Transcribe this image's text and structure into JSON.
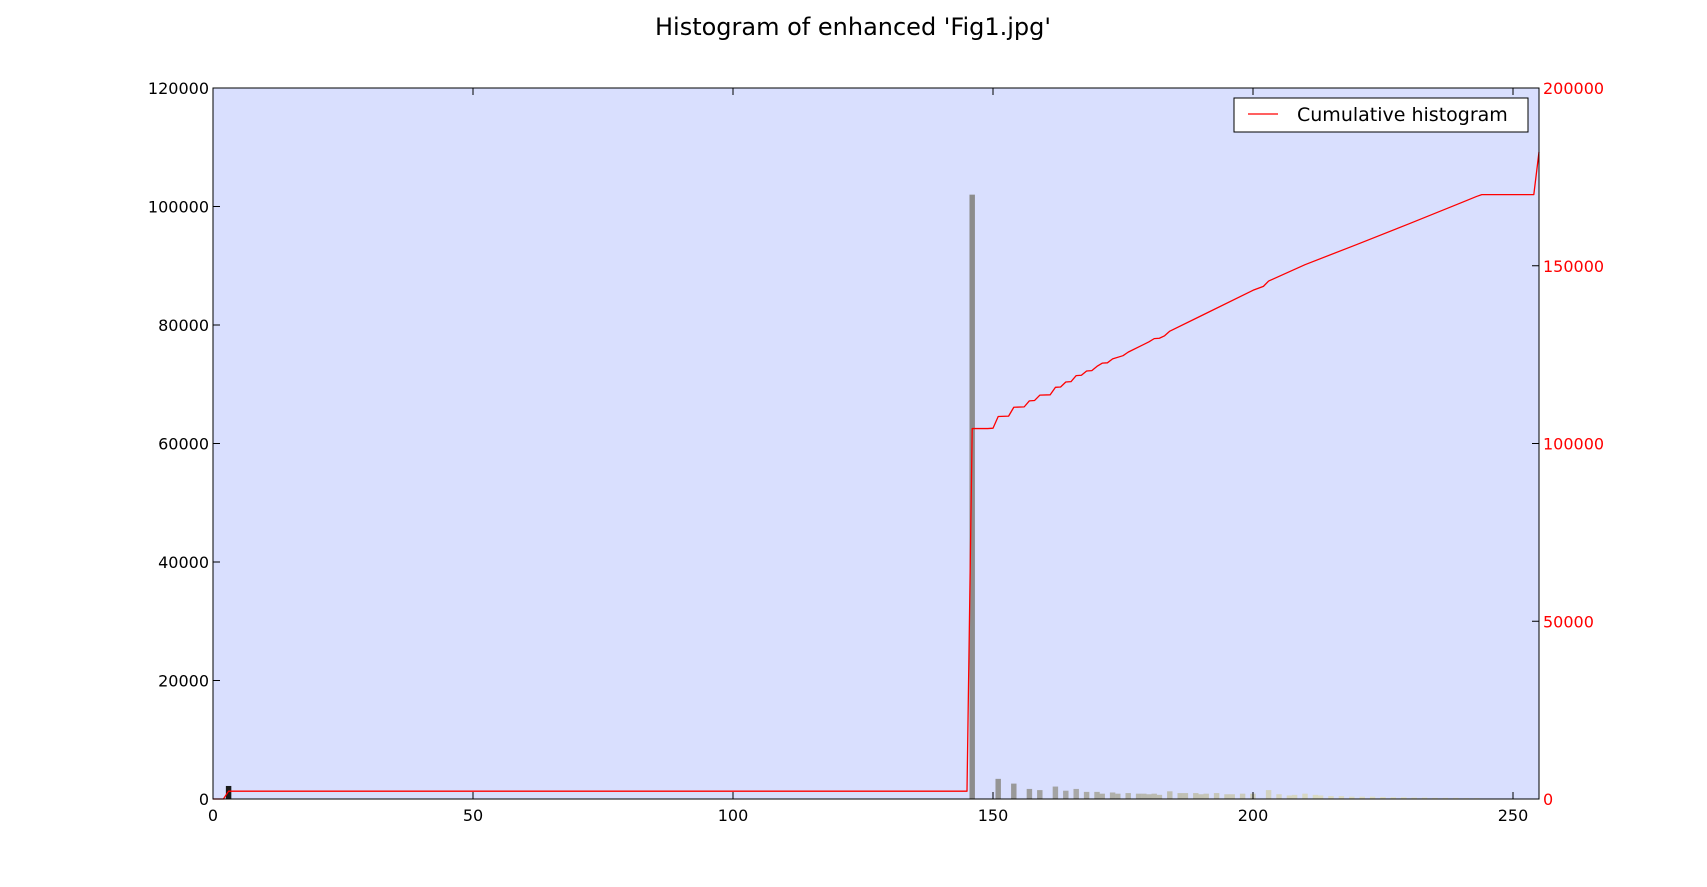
{
  "chart_data": {
    "type": "bar",
    "title": "Histogram of enhanced 'Fig1.jpg'",
    "xlabel": "",
    "ylabel": "",
    "xlim": [
      0,
      255
    ],
    "ylim_left": [
      0,
      120000
    ],
    "ylim_right": [
      0,
      200000
    ],
    "x_ticks": [
      "0",
      "50",
      "100",
      "150",
      "200",
      "250"
    ],
    "y_left_ticks": [
      "0",
      "20000",
      "40000",
      "60000",
      "80000",
      "100000",
      "120000"
    ],
    "y_right_ticks": [
      "0",
      "50000",
      "100000",
      "150000",
      "200000"
    ],
    "grid": false,
    "legend": {
      "position": "top-right",
      "entries": [
        "Cumulative histogram"
      ]
    },
    "colors": {
      "plot_background": "#d9dffe",
      "cumulative_line": "#ff0000",
      "right_axis_labels": "#ff0000"
    },
    "series": [
      {
        "type": "bar",
        "axis": "left",
        "points": [
          {
            "x": 3,
            "y": 2200,
            "color": "#1a1a1a"
          },
          {
            "x": 146,
            "y": 102000,
            "color": "#8c8c8c"
          },
          {
            "x": 151,
            "y": 3400,
            "color": "#959595"
          },
          {
            "x": 154,
            "y": 2600,
            "color": "#999999"
          },
          {
            "x": 157,
            "y": 1700,
            "color": "#9c9c9c"
          },
          {
            "x": 159,
            "y": 1500,
            "color": "#a0a0a0"
          },
          {
            "x": 162,
            "y": 2100,
            "color": "#a3a3a3"
          },
          {
            "x": 164,
            "y": 1400,
            "color": "#a6a6a6"
          },
          {
            "x": 166,
            "y": 1700,
            "color": "#a8a8a8"
          },
          {
            "x": 168,
            "y": 1200,
            "color": "#abaaa6"
          },
          {
            "x": 170,
            "y": 1200,
            "color": "#adada8"
          },
          {
            "x": 171,
            "y": 900,
            "color": "#afafa9"
          },
          {
            "x": 173,
            "y": 1100,
            "color": "#b0b0ab"
          },
          {
            "x": 174,
            "y": 900,
            "color": "#b2b2ac"
          },
          {
            "x": 176,
            "y": 1000,
            "color": "#b4b4ad"
          },
          {
            "x": 178,
            "y": 900,
            "color": "#b6b6ae"
          },
          {
            "x": 179,
            "y": 900,
            "color": "#b8b8af"
          },
          {
            "x": 180,
            "y": 800,
            "color": "#b9b9b0"
          },
          {
            "x": 181,
            "y": 900,
            "color": "#bbbbb1"
          },
          {
            "x": 182,
            "y": 700,
            "color": "#bdbdb2"
          },
          {
            "x": 184,
            "y": 1300,
            "color": "#bebeb3"
          },
          {
            "x": 186,
            "y": 1000,
            "color": "#c0c0b4"
          },
          {
            "x": 187,
            "y": 1000,
            "color": "#c1c1b5"
          },
          {
            "x": 189,
            "y": 1000,
            "color": "#c3c3b6"
          },
          {
            "x": 190,
            "y": 800,
            "color": "#c4c4b7"
          },
          {
            "x": 191,
            "y": 900,
            "color": "#c6c6b8"
          },
          {
            "x": 193,
            "y": 1000,
            "color": "#c7c7b9"
          },
          {
            "x": 195,
            "y": 800,
            "color": "#c9c9ba"
          },
          {
            "x": 196,
            "y": 800,
            "color": "#cacabb"
          },
          {
            "x": 198,
            "y": 900,
            "color": "#cbcbbc"
          },
          {
            "x": 200,
            "y": 900,
            "color": "#cdcdbd"
          },
          {
            "x": 203,
            "y": 1500,
            "color": "#d2d2c0"
          },
          {
            "x": 205,
            "y": 800,
            "color": "#d4d4c1"
          },
          {
            "x": 207,
            "y": 600,
            "color": "#d6d6c2"
          },
          {
            "x": 208,
            "y": 700,
            "color": "#d7d7c3"
          },
          {
            "x": 210,
            "y": 900,
            "color": "#d8d8c3"
          },
          {
            "x": 212,
            "y": 700,
            "color": "#dadac4"
          },
          {
            "x": 213,
            "y": 600,
            "color": "#dbdbc5"
          },
          {
            "x": 215,
            "y": 500,
            "color": "#dcdcc5"
          },
          {
            "x": 217,
            "y": 500,
            "color": "#dddcc6"
          },
          {
            "x": 219,
            "y": 400,
            "color": "#dedec6"
          },
          {
            "x": 221,
            "y": 400,
            "color": "#dfdfc7"
          },
          {
            "x": 223,
            "y": 400,
            "color": "#e0e0c7"
          },
          {
            "x": 225,
            "y": 350,
            "color": "#e1e1c8"
          },
          {
            "x": 227,
            "y": 300,
            "color": "#e2e2c8"
          },
          {
            "x": 229,
            "y": 300,
            "color": "#e3e3c9"
          },
          {
            "x": 231,
            "y": 250,
            "color": "#e4e4c9"
          },
          {
            "x": 233,
            "y": 250,
            "color": "#e5e5ca"
          },
          {
            "x": 235,
            "y": 200,
            "color": "#e6e6ca"
          },
          {
            "x": 237,
            "y": 200,
            "color": "#e6e6cb"
          },
          {
            "x": 239,
            "y": 200,
            "color": "#e7e7cb"
          },
          {
            "x": 241,
            "y": 150,
            "color": "#e8e8cc"
          },
          {
            "x": 243,
            "y": 150,
            "color": "#e8e8cc"
          }
        ]
      },
      {
        "type": "line",
        "axis": "right",
        "name": "Cumulative histogram",
        "x": [
          0,
          2,
          3,
          145,
          146,
          149,
          150,
          151,
          153,
          154,
          156,
          157,
          158,
          159,
          161,
          162,
          163,
          164,
          165,
          166,
          167,
          168,
          169,
          170,
          171,
          172,
          173,
          175,
          176,
          180,
          181,
          182,
          183,
          184,
          190,
          200,
          202,
          203,
          210,
          220,
          230,
          240,
          243,
          244,
          254,
          255
        ],
        "y": [
          0,
          0,
          2200,
          2200,
          104200,
          104200,
          104300,
          107600,
          107700,
          110200,
          110300,
          112000,
          112100,
          113600,
          113700,
          115800,
          115900,
          117300,
          117400,
          119100,
          119200,
          120400,
          120500,
          121700,
          122600,
          122700,
          123800,
          124700,
          125700,
          128600,
          129500,
          129600,
          130300,
          131600,
          135900,
          143100,
          144200,
          145700,
          150300,
          156000,
          161800,
          167700,
          169500,
          170000,
          170000,
          182000
        ]
      }
    ]
  }
}
